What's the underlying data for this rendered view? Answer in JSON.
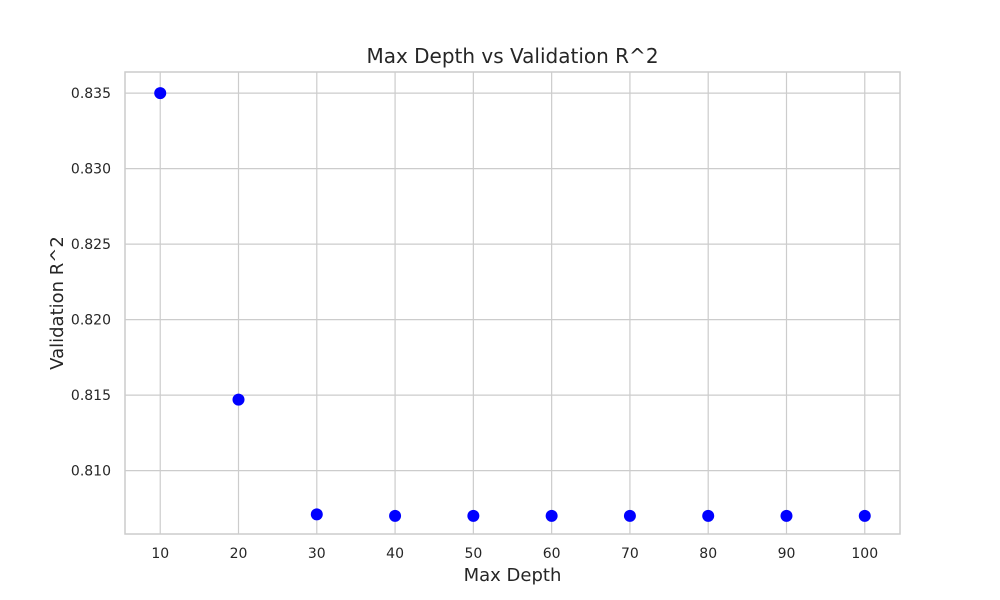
{
  "chart_data": {
    "type": "scatter",
    "title": "Max Depth vs Validation R^2",
    "xlabel": "Max Depth",
    "ylabel": "Validation R^2",
    "x": [
      10,
      20,
      30,
      40,
      50,
      60,
      70,
      80,
      90,
      100
    ],
    "y": [
      0.835,
      0.8147,
      0.8071,
      0.807,
      0.807,
      0.807,
      0.807,
      0.807,
      0.807,
      0.807
    ],
    "xticks": [
      10,
      20,
      30,
      40,
      50,
      60,
      70,
      80,
      90,
      100
    ],
    "xtick_labels": [
      "10",
      "20",
      "30",
      "40",
      "50",
      "60",
      "70",
      "80",
      "90",
      "100"
    ],
    "yticks": [
      0.81,
      0.815,
      0.82,
      0.825,
      0.83,
      0.835
    ],
    "ytick_labels": [
      "0.810",
      "0.815",
      "0.820",
      "0.825",
      "0.830",
      "0.835"
    ],
    "xlim": [
      5.5,
      104.5
    ],
    "ylim": [
      0.8058,
      0.8364
    ],
    "grid": true,
    "marker_color": "#0000ff",
    "grid_color": "#cccccc"
  }
}
